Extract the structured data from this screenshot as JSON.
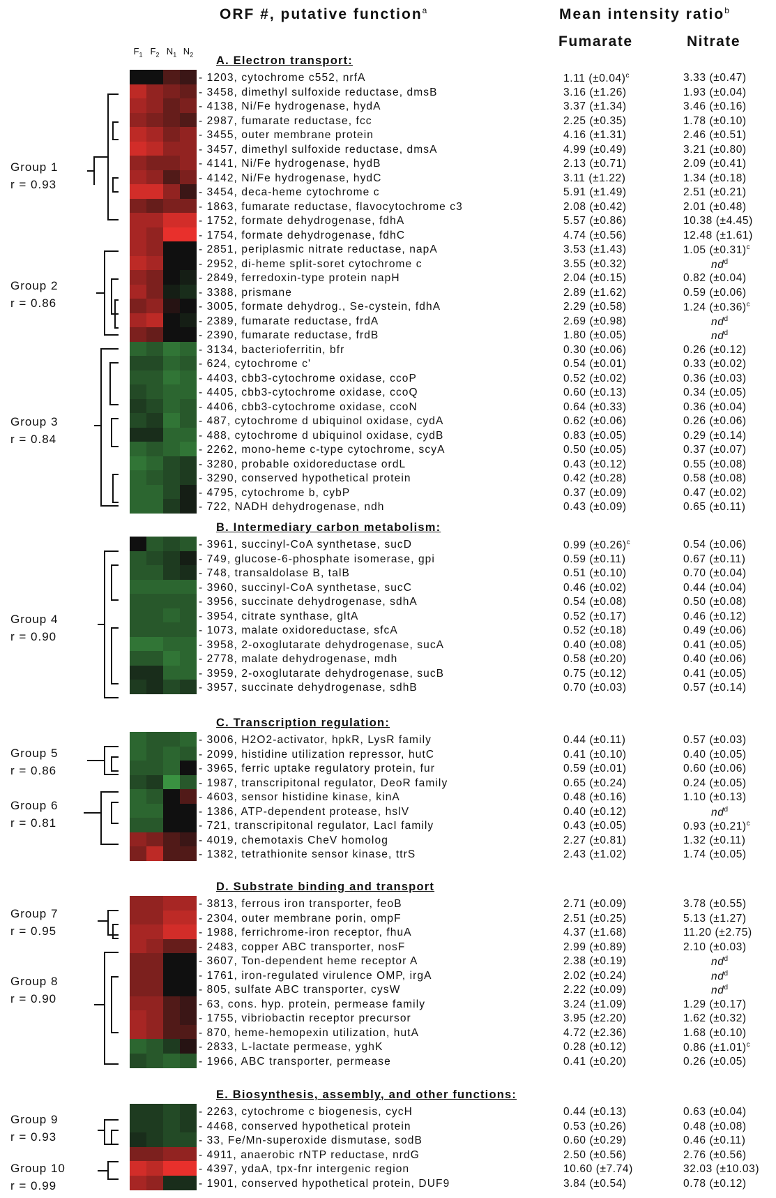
{
  "header": {
    "orf_title": "ORF #, putative function",
    "orf_sup": "a",
    "ratio_title": "Mean intensity ratio",
    "ratio_sup": "b",
    "col_fumarate": "Fumarate",
    "col_nitrate": "Nitrate"
  },
  "conditions": [
    "F",
    "F",
    "N",
    "N"
  ],
  "condition_subs": [
    "1",
    "2",
    "1",
    "2"
  ],
  "sections": [
    {
      "id": "A",
      "title": "A. Electron transport:"
    },
    {
      "id": "B",
      "title": "B. Intermediary carbon metabolism:"
    },
    {
      "id": "C",
      "title": "C. Transcription regulation:"
    },
    {
      "id": "D",
      "title": "D. Substrate binding and transport"
    },
    {
      "id": "E",
      "title": "E. Biosynthesis, assembly, and other functions:"
    }
  ],
  "groups": [
    {
      "name": "Group 1",
      "r": "r = 0.93"
    },
    {
      "name": "Group 2",
      "r": "r = 0.86"
    },
    {
      "name": "Group 3",
      "r": "r = 0.84"
    },
    {
      "name": "Group 4",
      "r": "r = 0.90"
    },
    {
      "name": "Group 5",
      "r": "r = 0.86"
    },
    {
      "name": "Group 6",
      "r": "r = 0.81"
    },
    {
      "name": "Group 7",
      "r": "r = 0.95"
    },
    {
      "name": "Group 8",
      "r": "r = 0.90"
    },
    {
      "name": "Group 9",
      "r": "r = 0.93"
    },
    {
      "name": "Group 10",
      "r": "r = 0.99"
    }
  ],
  "rows": [
    {
      "orf": "1203",
      "name": "cytochrome c552, nrfA",
      "f": "1.11 (±0.04)",
      "ff": "c",
      "n": "3.33 (±0.47)",
      "nf": ""
    },
    {
      "orf": "3458",
      "name": "dimethyl sulfoxide reductase, dmsB",
      "f": "3.16 (±1.26)",
      "ff": "",
      "n": "1.93 (±0.04)",
      "nf": ""
    },
    {
      "orf": "4138",
      "name": "Ni/Fe hydrogenase, hydA",
      "f": "3.37 (±1.34)",
      "ff": "",
      "n": "3.46 (±0.16)",
      "nf": ""
    },
    {
      "orf": "2987",
      "name": "fumarate reductase, fcc",
      "f": "2.25 (±0.35)",
      "ff": "",
      "n": "1.78 (±0.10)",
      "nf": ""
    },
    {
      "orf": "3455",
      "name": "outer membrane protein",
      "f": "4.16 (±1.31)",
      "ff": "",
      "n": "2.46 (±0.51)",
      "nf": ""
    },
    {
      "orf": "3457",
      "name": "dimethyl sulfoxide reductase, dmsA",
      "f": "4.99 (±0.49)",
      "ff": "",
      "n": "3.21 (±0.80)",
      "nf": ""
    },
    {
      "orf": "4141",
      "name": "Ni/Fe hydrogenase, hydB",
      "f": "2.13 (±0.71)",
      "ff": "",
      "n": "2.09 (±0.41)",
      "nf": ""
    },
    {
      "orf": "4142",
      "name": "Ni/Fe hydrogenase, hydC",
      "f": "3.11 (±1.22)",
      "ff": "",
      "n": "1.34 (±0.18)",
      "nf": ""
    },
    {
      "orf": "3454",
      "name": "deca-heme cytochrome c",
      "f": "5.91 (±1.49)",
      "ff": "",
      "n": "2.51 (±0.21)",
      "nf": ""
    },
    {
      "orf": "1863",
      "name": "fumarate reductase, flavocytochrome c3",
      "f": "2.08 (±0.42)",
      "ff": "",
      "n": "2.01 (±0.48)",
      "nf": ""
    },
    {
      "orf": "1752",
      "name": "formate dehydrogenase, fdhA",
      "f": "5.57 (±0.86)",
      "ff": "",
      "n": "10.38 (±4.45)",
      "nf": ""
    },
    {
      "orf": "1754",
      "name": "formate dehydrogenase, fdhC",
      "f": "4.74 (±0.56)",
      "ff": "",
      "n": "12.48 (±1.61)",
      "nf": ""
    },
    {
      "orf": "2851",
      "name": "periplasmic nitrate reductase, napA",
      "f": "3.53 (±1.43)",
      "ff": "",
      "n": "1.05 (±0.31)",
      "nf": "c"
    },
    {
      "orf": "2952",
      "name": "di-heme split-soret cytochrome c",
      "f": "3.55 (±0.32)",
      "ff": "",
      "n": "nd",
      "nf": "d"
    },
    {
      "orf": "2849",
      "name": "ferredoxin-type protein napH",
      "f": "2.04 (±0.15)",
      "ff": "",
      "n": "0.82 (±0.04)",
      "nf": ""
    },
    {
      "orf": "3388",
      "name": "prismane",
      "f": "2.89 (±1.62)",
      "ff": "",
      "n": "0.59 (±0.06)",
      "nf": ""
    },
    {
      "orf": "3005",
      "name": "formate dehydrog., Se-cystein, fdhA",
      "f": "2.29 (±0.58)",
      "ff": "",
      "n": "1.24 (±0.36)",
      "nf": "c"
    },
    {
      "orf": "2389",
      "name": "fumarate reductase, frdA",
      "f": "2.69 (±0.98)",
      "ff": "",
      "n": "nd",
      "nf": "d"
    },
    {
      "orf": "2390",
      "name": "fumarate reductase, frdB",
      "f": "1.80 (±0.05)",
      "ff": "",
      "n": "nd",
      "nf": "d"
    },
    {
      "orf": "3134",
      "name": "bacterioferritin, bfr",
      "f": "0.30 (±0.06)",
      "ff": "",
      "n": "0.26 (±0.12)",
      "nf": ""
    },
    {
      "orf": "624",
      "name": "cytochrome c'",
      "f": "0.54 (±0.01)",
      "ff": "",
      "n": "0.33 (±0.02)",
      "nf": ""
    },
    {
      "orf": "4403",
      "name": "cbb3-cytochrome oxidase, ccoP",
      "f": "0.52 (±0.02)",
      "ff": "",
      "n": "0.36 (±0.03)",
      "nf": ""
    },
    {
      "orf": "4405",
      "name": "cbb3-cytochrome oxidase, ccoQ",
      "f": "0.60 (±0.13)",
      "ff": "",
      "n": "0.34 (±0.05)",
      "nf": ""
    },
    {
      "orf": "4406",
      "name": "cbb3-cytochrome oxidase, ccoN",
      "f": "0.64 (±0.33)",
      "ff": "",
      "n": "0.36 (±0.04)",
      "nf": ""
    },
    {
      "orf": "487",
      "name": "cytochrome d ubiquinol oxidase, cydA",
      "f": "0.62 (±0.06)",
      "ff": "",
      "n": "0.26 (±0.06)",
      "nf": ""
    },
    {
      "orf": "488",
      "name": "cytochrome d ubiquinol oxidase, cydB",
      "f": "0.83 (±0.05)",
      "ff": "",
      "n": "0.29 (±0.14)",
      "nf": ""
    },
    {
      "orf": "2262",
      "name": "mono-heme c-type cytochrome, scyA",
      "f": "0.50 (±0.05)",
      "ff": "",
      "n": "0.37 (±0.07)",
      "nf": ""
    },
    {
      "orf": "3280",
      "name": "probable oxidoreductase ordL",
      "f": "0.43 (±0.12)",
      "ff": "",
      "n": "0.55 (±0.08)",
      "nf": ""
    },
    {
      "orf": "3290",
      "name": "conserved hypothetical protein",
      "f": "0.42 (±0.28)",
      "ff": "",
      "n": "0.58 (±0.08)",
      "nf": ""
    },
    {
      "orf": "4795",
      "name": "cytochrome b, cybP",
      "f": "0.37 (±0.09)",
      "ff": "",
      "n": "0.47 (±0.02)",
      "nf": ""
    },
    {
      "orf": "722",
      "name": "NADH dehydrogenase, ndh",
      "f": "0.43 (±0.09)",
      "ff": "",
      "n": "0.65 (±0.11)",
      "nf": ""
    },
    {
      "orf": "3961",
      "name": "succinyl-CoA synthetase, sucD",
      "f": "0.99 (±0.26)",
      "ff": "c",
      "n": "0.54 (±0.06)",
      "nf": ""
    },
    {
      "orf": "749",
      "name": "glucose-6-phosphate isomerase, gpi",
      "f": "0.59 (±0.11)",
      "ff": "",
      "n": "0.67 (±0.11)",
      "nf": ""
    },
    {
      "orf": "748",
      "name": "transaldolase B, talB",
      "f": "0.51 (±0.10)",
      "ff": "",
      "n": "0.70 (±0.04)",
      "nf": ""
    },
    {
      "orf": "3960",
      "name": "succinyl-CoA synthetase, sucC",
      "f": "0.46 (±0.02)",
      "ff": "",
      "n": "0.44 (±0.04)",
      "nf": ""
    },
    {
      "orf": "3956",
      "name": "succinate dehydrogenase, sdhA",
      "f": "0.54 (±0.08)",
      "ff": "",
      "n": "0.50 (±0.08)",
      "nf": ""
    },
    {
      "orf": "3954",
      "name": "citrate synthase, gltA",
      "f": "0.52 (±0.17)",
      "ff": "",
      "n": "0.46 (±0.12)",
      "nf": ""
    },
    {
      "orf": "1073",
      "name": "malate oxidoreductase, sfcA",
      "f": "0.52 (±0.18)",
      "ff": "",
      "n": "0.49 (±0.06)",
      "nf": ""
    },
    {
      "orf": "3958",
      "name": "2-oxoglutarate dehydrogenase, sucA",
      "f": "0.40 (±0.08)",
      "ff": "",
      "n": "0.41 (±0.05)",
      "nf": ""
    },
    {
      "orf": "2778",
      "name": "malate dehydrogenase, mdh",
      "f": "0.58 (±0.20)",
      "ff": "",
      "n": "0.40 (±0.06)",
      "nf": ""
    },
    {
      "orf": "3959",
      "name": "2-oxoglutarate dehydrogenase, sucB",
      "f": "0.75 (±0.12)",
      "ff": "",
      "n": "0.41 (±0.05)",
      "nf": ""
    },
    {
      "orf": "3957",
      "name": "succinate dehydrogenase, sdhB",
      "f": "0.70 (±0.03)",
      "ff": "",
      "n": "0.57 (±0.14)",
      "nf": ""
    },
    {
      "orf": "3006",
      "name": "H2O2-activator, hpkR, LysR family",
      "f": "0.44 (±0.11)",
      "ff": "",
      "n": "0.57 (±0.03)",
      "nf": ""
    },
    {
      "orf": "2099",
      "name": "histidine utilization repressor, hutC",
      "f": "0.41 (±0.10)",
      "ff": "",
      "n": "0.40 (±0.05)",
      "nf": ""
    },
    {
      "orf": "3965",
      "name": "ferric uptake regulatory protein, fur",
      "f": "0.59 (±0.01)",
      "ff": "",
      "n": "0.60 (±0.06)",
      "nf": ""
    },
    {
      "orf": "1987",
      "name": "transcripitonal regulator, DeoR family",
      "f": "0.65 (±0.24)",
      "ff": "",
      "n": "0.24 (±0.05)",
      "nf": ""
    },
    {
      "orf": "4603",
      "name": "sensor histidine kinase, kinA",
      "f": "0.48 (±0.16)",
      "ff": "",
      "n": "1.10 (±0.13)",
      "nf": ""
    },
    {
      "orf": "1386",
      "name": "ATP-dependent protease, hslV",
      "f": "0.40 (±0.12)",
      "ff": "",
      "n": "nd",
      "nf": "d"
    },
    {
      "orf": "721",
      "name": "transcripitonal regulator, LacI family",
      "f": "0.43 (±0.05)",
      "ff": "",
      "n": "0.93 (±0.21)",
      "nf": "c"
    },
    {
      "orf": "4019",
      "name": "chemotaxis CheV homolog",
      "f": "2.27 (±0.81)",
      "ff": "",
      "n": "1.32 (±0.11)",
      "nf": ""
    },
    {
      "orf": "1382",
      "name": "tetrathionite sensor kinase, ttrS",
      "f": "2.43 (±1.02)",
      "ff": "",
      "n": "1.74 (±0.05)",
      "nf": ""
    },
    {
      "orf": "3813",
      "name": "ferrous iron transporter, feoB",
      "f": "2.71 (±0.09)",
      "ff": "",
      "n": "3.78 (±0.55)",
      "nf": ""
    },
    {
      "orf": "2304",
      "name": "outer membrane porin, ompF",
      "f": "2.51 (±0.25)",
      "ff": "",
      "n": "5.13 (±1.27)",
      "nf": ""
    },
    {
      "orf": "1988",
      "name": "ferrichrome-iron receptor, fhuA",
      "f": "4.37 (±1.68)",
      "ff": "",
      "n": "11.20 (±2.75)",
      "nf": ""
    },
    {
      "orf": "2483",
      "name": "copper ABC transporter, nosF",
      "f": "2.99 (±0.89)",
      "ff": "",
      "n": "2.10 (±0.03)",
      "nf": ""
    },
    {
      "orf": "3607",
      "name": "Ton-dependent heme receptor A",
      "f": "2.38 (±0.19)",
      "ff": "",
      "n": "nd",
      "nf": "d"
    },
    {
      "orf": "1761",
      "name": "iron-regulated virulence OMP, irgA",
      "f": "2.02 (±0.24)",
      "ff": "",
      "n": "nd",
      "nf": "d"
    },
    {
      "orf": "805",
      "name": "sulfate ABC transporter, cysW",
      "f": "2.22 (±0.09)",
      "ff": "",
      "n": "nd",
      "nf": "d"
    },
    {
      "orf": "63",
      "name": "cons. hyp. protein, permease family",
      "f": "3.24 (±1.09)",
      "ff": "",
      "n": "1.29 (±0.17)",
      "nf": ""
    },
    {
      "orf": "1755",
      "name": "vibriobactin receptor precursor",
      "f": "3.95 (±2.20)",
      "ff": "",
      "n": "1.62 (±0.32)",
      "nf": ""
    },
    {
      "orf": "870",
      "name": "heme-hemopexin utilization, hutA",
      "f": "4.72 (±2.36)",
      "ff": "",
      "n": "1.68 (±0.10)",
      "nf": ""
    },
    {
      "orf": "2833",
      "name": "L-lactate permease, yghK",
      "f": "0.28 (±0.12)",
      "ff": "",
      "n": "0.86 (±1.01)",
      "nf": "c"
    },
    {
      "orf": "1966",
      "name": "ABC transporter, permease",
      "f": "0.41 (±0.20)",
      "ff": "",
      "n": "0.26 (±0.05)",
      "nf": ""
    },
    {
      "orf": "2263",
      "name": "cytochrome c biogenesis, cycH",
      "f": "0.44 (±0.13)",
      "ff": "",
      "n": "0.63 (±0.04)",
      "nf": ""
    },
    {
      "orf": "4468",
      "name": "conserved hypothetical protein",
      "f": "0.53 (±0.26)",
      "ff": "",
      "n": "0.48 (±0.08)",
      "nf": ""
    },
    {
      "orf": "33",
      "name": "Fe/Mn-superoxide dismutase, sodB",
      "f": "0.60 (±0.29)",
      "ff": "",
      "n": "0.46 (±0.11)",
      "nf": ""
    },
    {
      "orf": "4911",
      "name": "anaerobic rNTP reductase, nrdG",
      "f": "2.50 (±0.56)",
      "ff": "",
      "n": "2.76 (±0.56)",
      "nf": ""
    },
    {
      "orf": "4397",
      "name": "ydaA, tpx-fnr intergenic region",
      "f": "10.60 (±7.74)",
      "ff": "",
      "n": "32.03 (±10.03)",
      "nf": ""
    },
    {
      "orf": "1901",
      "name": "conserved hypothetical protein, DUF9",
      "f": "3.84 (±0.54)",
      "ff": "",
      "n": "0.78 (±0.12)",
      "nf": ""
    }
  ],
  "heatmap_colors": {
    "red": "#e8302c",
    "green": "#3fa046",
    "black": "#101010"
  },
  "heatmap_values": [
    [
      0.0,
      0.0,
      0.3,
      0.2
    ],
    [
      0.8,
      0.6,
      0.5,
      0.4
    ],
    [
      0.7,
      0.6,
      0.4,
      0.5
    ],
    [
      0.6,
      0.5,
      0.4,
      0.3
    ],
    [
      0.8,
      0.7,
      0.5,
      0.6
    ],
    [
      0.9,
      0.8,
      0.6,
      0.6
    ],
    [
      0.6,
      0.5,
      0.5,
      0.6
    ],
    [
      0.7,
      0.6,
      0.3,
      0.5
    ],
    [
      0.9,
      0.9,
      0.6,
      0.2
    ],
    [
      0.5,
      0.4,
      0.5,
      0.5
    ],
    [
      0.7,
      0.7,
      0.9,
      0.9
    ],
    [
      0.7,
      0.6,
      1.0,
      1.0
    ],
    [
      0.7,
      0.6,
      0.0,
      0.0
    ],
    [
      0.8,
      0.7,
      0.0,
      0.0
    ],
    [
      0.6,
      0.5,
      0.0,
      -0.1
    ],
    [
      0.7,
      0.5,
      -0.1,
      -0.2
    ],
    [
      0.5,
      0.6,
      0.1,
      0.0
    ],
    [
      0.7,
      0.8,
      0.0,
      -0.1
    ],
    [
      0.5,
      0.4,
      0.0,
      0.0
    ],
    [
      -0.6,
      -0.5,
      -0.7,
      -0.6
    ],
    [
      -0.4,
      -0.4,
      -0.6,
      -0.5
    ],
    [
      -0.5,
      -0.5,
      -0.7,
      -0.6
    ],
    [
      -0.4,
      -0.5,
      -0.6,
      -0.6
    ],
    [
      -0.3,
      -0.4,
      -0.6,
      -0.5
    ],
    [
      -0.4,
      -0.3,
      -0.7,
      -0.5
    ],
    [
      -0.2,
      -0.2,
      -0.6,
      -0.6
    ],
    [
      -0.6,
      -0.5,
      -0.6,
      -0.7
    ],
    [
      -0.7,
      -0.6,
      -0.4,
      -0.3
    ],
    [
      -0.6,
      -0.5,
      -0.4,
      -0.3
    ],
    [
      -0.6,
      -0.6,
      -0.4,
      -0.1
    ],
    [
      -0.6,
      -0.6,
      -0.3,
      -0.1
    ],
    [
      0.0,
      -0.5,
      -0.4,
      -0.5
    ],
    [
      -0.5,
      -0.4,
      -0.3,
      -0.1
    ],
    [
      -0.5,
      -0.5,
      -0.3,
      -0.2
    ],
    [
      -0.6,
      -0.6,
      -0.6,
      -0.6
    ],
    [
      -0.5,
      -0.5,
      -0.5,
      -0.5
    ],
    [
      -0.5,
      -0.5,
      -0.6,
      -0.5
    ],
    [
      -0.5,
      -0.5,
      -0.5,
      -0.5
    ],
    [
      -0.7,
      -0.7,
      -0.6,
      -0.6
    ],
    [
      -0.5,
      -0.5,
      -0.7,
      -0.6
    ],
    [
      -0.2,
      -0.2,
      -0.6,
      -0.6
    ],
    [
      -0.3,
      -0.2,
      -0.4,
      -0.3
    ],
    [
      -0.6,
      -0.5,
      -0.5,
      -0.6
    ],
    [
      -0.6,
      -0.5,
      -0.6,
      -0.5
    ],
    [
      -0.5,
      -0.5,
      -0.6,
      0.0
    ],
    [
      -0.4,
      -0.3,
      -0.9,
      -0.5
    ],
    [
      -0.6,
      -0.5,
      0.0,
      0.3
    ],
    [
      -0.6,
      -0.6,
      0.0,
      0.0
    ],
    [
      -0.5,
      -0.5,
      0.0,
      0.0
    ],
    [
      0.6,
      0.5,
      0.3,
      0.2
    ],
    [
      0.5,
      0.8,
      0.3,
      0.3
    ],
    [
      0.6,
      0.6,
      0.7,
      0.7
    ],
    [
      0.6,
      0.6,
      0.8,
      0.8
    ],
    [
      0.7,
      0.7,
      0.9,
      0.9
    ],
    [
      0.7,
      0.6,
      0.4,
      0.4
    ],
    [
      0.5,
      0.5,
      0.0,
      0.0
    ],
    [
      0.5,
      0.5,
      0.0,
      0.0
    ],
    [
      0.5,
      0.5,
      0.0,
      0.0
    ],
    [
      0.6,
      0.6,
      0.3,
      0.2
    ],
    [
      0.7,
      0.6,
      0.3,
      0.2
    ],
    [
      0.7,
      0.6,
      0.3,
      0.3
    ],
    [
      -0.6,
      -0.5,
      -0.3,
      0.1
    ],
    [
      -0.4,
      -0.5,
      -0.6,
      -0.5
    ],
    [
      -0.3,
      -0.3,
      -0.4,
      -0.3
    ],
    [
      -0.3,
      -0.3,
      -0.4,
      -0.3
    ],
    [
      -0.2,
      -0.3,
      -0.4,
      -0.4
    ],
    [
      0.5,
      0.5,
      0.6,
      0.6
    ],
    [
      0.9,
      0.8,
      1.0,
      1.0
    ],
    [
      0.7,
      0.6,
      -0.2,
      -0.2
    ]
  ]
}
